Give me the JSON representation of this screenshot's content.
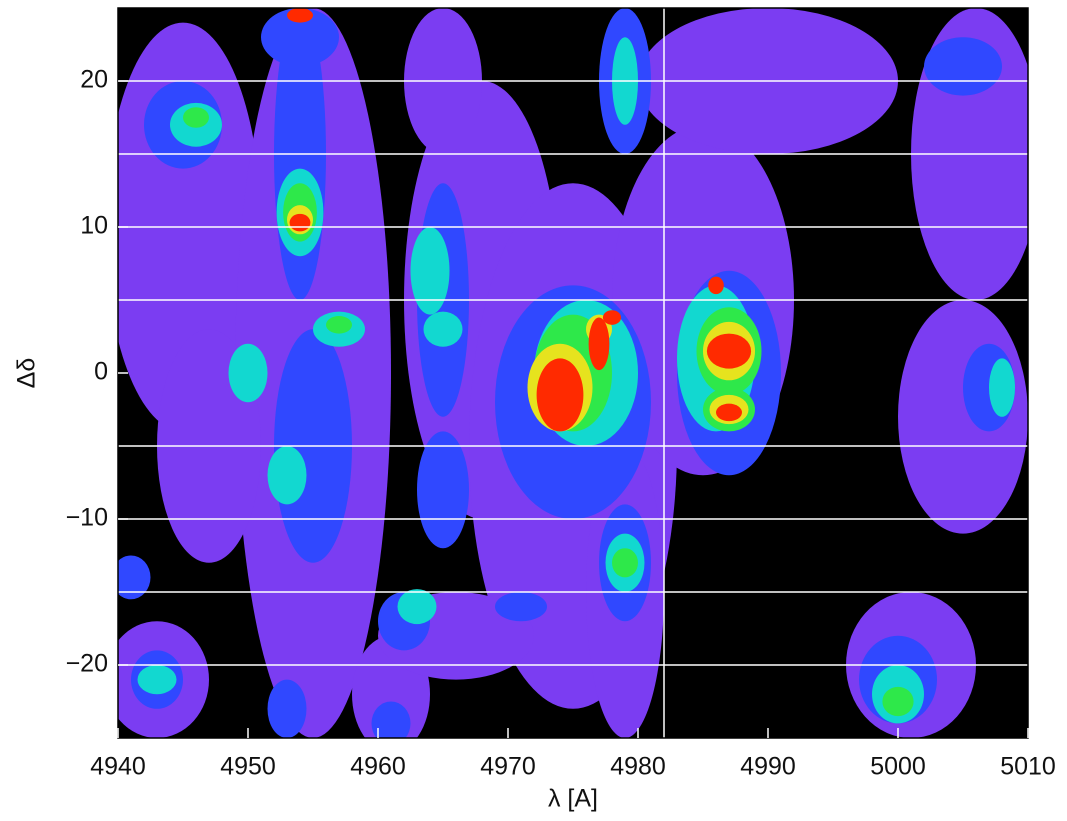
{
  "chart_data": {
    "type": "contour",
    "x_label": "λ [A]",
    "y_label": "Δδ",
    "xlim": [
      4940,
      5010
    ],
    "ylim": [
      -25,
      25
    ],
    "xticks": [
      4940,
      4950,
      4960,
      4970,
      4980,
      4990,
      5000,
      5010
    ],
    "yticks": [
      {
        "value": -20,
        "label": "−20"
      },
      {
        "value": -10,
        "label": "−10"
      },
      0,
      10,
      20
    ],
    "hlines": [
      20,
      15,
      10,
      5,
      -5,
      -10,
      -15,
      -20
    ],
    "vlines": [
      4982
    ],
    "background": "#000000",
    "level_colors": [
      "#7b3df2",
      "#3048ff",
      "#12d8d0",
      "#2ee84a",
      "#e6e31e",
      "#ff2a00"
    ],
    "features": [
      {
        "x": 4945,
        "y": 10,
        "w": 6,
        "h": 14,
        "level": 1
      },
      {
        "x": 4955,
        "y": 0,
        "w": 6,
        "h": 25,
        "level": 1
      },
      {
        "x": 4968,
        "y": 5,
        "w": 6,
        "h": 15,
        "level": 1
      },
      {
        "x": 4975,
        "y": -5,
        "w": 8,
        "h": 18,
        "level": 1
      },
      {
        "x": 4985,
        "y": 5,
        "w": 7,
        "h": 12,
        "level": 1
      },
      {
        "x": 4990,
        "y": 20,
        "w": 10,
        "h": 5,
        "level": 1
      },
      {
        "x": 5006,
        "y": 15,
        "w": 5,
        "h": 10,
        "level": 1
      },
      {
        "x": 5005,
        "y": -3,
        "w": 5,
        "h": 8,
        "level": 1
      },
      {
        "x": 5001,
        "y": -20,
        "w": 5,
        "h": 5,
        "level": 1
      },
      {
        "x": 4943,
        "y": -21,
        "w": 4,
        "h": 4,
        "level": 1
      },
      {
        "x": 4961,
        "y": -22,
        "w": 3,
        "h": 4,
        "level": 1
      },
      {
        "x": 4979,
        "y": -15,
        "w": 3,
        "h": 10,
        "level": 1
      },
      {
        "x": 4947,
        "y": -5,
        "w": 4,
        "h": 8,
        "level": 1
      },
      {
        "x": 4966,
        "y": -18,
        "w": 6,
        "h": 3,
        "level": 1
      },
      {
        "x": 4965,
        "y": 20,
        "w": 3,
        "h": 5,
        "level": 1
      },
      {
        "x": 4945,
        "y": 17,
        "w": 3,
        "h": 3,
        "level": 2
      },
      {
        "x": 4954,
        "y": 15,
        "w": 2,
        "h": 10,
        "level": 2
      },
      {
        "x": 4955,
        "y": -5,
        "w": 3,
        "h": 8,
        "level": 2
      },
      {
        "x": 4965,
        "y": 5,
        "w": 2,
        "h": 8,
        "level": 2
      },
      {
        "x": 4975,
        "y": -2,
        "w": 6,
        "h": 8,
        "level": 2
      },
      {
        "x": 4987,
        "y": 0,
        "w": 4,
        "h": 7,
        "level": 2
      },
      {
        "x": 4979,
        "y": 20,
        "w": 2,
        "h": 5,
        "level": 2
      },
      {
        "x": 4954,
        "y": 23,
        "w": 3,
        "h": 2,
        "level": 2
      },
      {
        "x": 4965,
        "y": -8,
        "w": 2,
        "h": 4,
        "level": 2
      },
      {
        "x": 5000,
        "y": -21,
        "w": 3,
        "h": 3,
        "level": 2
      },
      {
        "x": 4943,
        "y": -21,
        "w": 2,
        "h": 2,
        "level": 2
      },
      {
        "x": 5007,
        "y": -1,
        "w": 2,
        "h": 3,
        "level": 2
      },
      {
        "x": 4962,
        "y": -17,
        "w": 2,
        "h": 2,
        "level": 2
      },
      {
        "x": 4979,
        "y": -13,
        "w": 2,
        "h": 4,
        "level": 2
      },
      {
        "x": 5005,
        "y": 21,
        "w": 3,
        "h": 2,
        "level": 2
      },
      {
        "x": 4941,
        "y": -14,
        "w": 1.5,
        "h": 1.5,
        "level": 2
      },
      {
        "x": 4953,
        "y": -23,
        "w": 1.5,
        "h": 2,
        "level": 2
      },
      {
        "x": 4961,
        "y": -24,
        "w": 1.5,
        "h": 1.5,
        "level": 2
      },
      {
        "x": 4971,
        "y": -16,
        "w": 2,
        "h": 1,
        "level": 2
      },
      {
        "x": 4946,
        "y": 17,
        "w": 2,
        "h": 1.5,
        "level": 3
      },
      {
        "x": 4954,
        "y": 11,
        "w": 1.8,
        "h": 3,
        "level": 3
      },
      {
        "x": 4957,
        "y": 3,
        "w": 2,
        "h": 1.2,
        "level": 3
      },
      {
        "x": 4964,
        "y": 7,
        "w": 1.5,
        "h": 3,
        "level": 3
      },
      {
        "x": 4965,
        "y": 3,
        "w": 1.5,
        "h": 1.2,
        "level": 3
      },
      {
        "x": 4976,
        "y": 0,
        "w": 4,
        "h": 5,
        "level": 3
      },
      {
        "x": 4986,
        "y": 1,
        "w": 3,
        "h": 5,
        "level": 3
      },
      {
        "x": 4979,
        "y": -13,
        "w": 1.5,
        "h": 2,
        "level": 3
      },
      {
        "x": 4979,
        "y": 20,
        "w": 1,
        "h": 3,
        "level": 3
      },
      {
        "x": 5000,
        "y": -22,
        "w": 2,
        "h": 2,
        "level": 3
      },
      {
        "x": 4953,
        "y": -7,
        "w": 1.5,
        "h": 2,
        "level": 3
      },
      {
        "x": 4950,
        "y": 0,
        "w": 1.5,
        "h": 2,
        "level": 3
      },
      {
        "x": 5008,
        "y": -1,
        "w": 1,
        "h": 2,
        "level": 3
      },
      {
        "x": 4963,
        "y": -16,
        "w": 1.5,
        "h": 1.2,
        "level": 3
      },
      {
        "x": 4943,
        "y": -21,
        "w": 1.5,
        "h": 1,
        "level": 3
      },
      {
        "x": 4975,
        "y": 0,
        "w": 3,
        "h": 4,
        "level": 4
      },
      {
        "x": 4987,
        "y": 1.5,
        "w": 2.5,
        "h": 3,
        "level": 4
      },
      {
        "x": 4987,
        "y": -2.5,
        "w": 2,
        "h": 1.5,
        "level": 4
      },
      {
        "x": 4954,
        "y": 11,
        "w": 1.3,
        "h": 2,
        "level": 4
      },
      {
        "x": 4979,
        "y": -13,
        "w": 1,
        "h": 1,
        "level": 4
      },
      {
        "x": 4946,
        "y": 17.5,
        "w": 1,
        "h": 0.7,
        "level": 4
      },
      {
        "x": 5000,
        "y": -22.5,
        "w": 1.2,
        "h": 1,
        "level": 4
      },
      {
        "x": 4957,
        "y": 3.3,
        "w": 1,
        "h": 0.6,
        "level": 4
      },
      {
        "x": 4974,
        "y": -1,
        "w": 2.5,
        "h": 3,
        "level": 5
      },
      {
        "x": 4987,
        "y": 1.5,
        "w": 2,
        "h": 2,
        "level": 5
      },
      {
        "x": 4954,
        "y": 10.5,
        "w": 1,
        "h": 1,
        "level": 5
      },
      {
        "x": 4977,
        "y": 3,
        "w": 1,
        "h": 1,
        "level": 5
      },
      {
        "x": 4987,
        "y": -2.5,
        "w": 1.5,
        "h": 1,
        "level": 5
      },
      {
        "x": 4974,
        "y": -1.5,
        "w": 1.8,
        "h": 2.5,
        "level": 6
      },
      {
        "x": 4977,
        "y": 2,
        "w": 0.8,
        "h": 1.8,
        "level": 6
      },
      {
        "x": 4987,
        "y": 1.5,
        "w": 1.7,
        "h": 1.2,
        "level": 6
      },
      {
        "x": 4954,
        "y": 10.3,
        "w": 0.8,
        "h": 0.6,
        "level": 6
      },
      {
        "x": 4987,
        "y": -2.7,
        "w": 1,
        "h": 0.6,
        "level": 6
      },
      {
        "x": 4986,
        "y": 6,
        "w": 0.6,
        "h": 0.6,
        "level": 6
      },
      {
        "x": 4954,
        "y": 24.5,
        "w": 1,
        "h": 0.5,
        "level": 6
      },
      {
        "x": 4978,
        "y": 3.8,
        "w": 0.7,
        "h": 0.5,
        "level": 6
      }
    ]
  }
}
